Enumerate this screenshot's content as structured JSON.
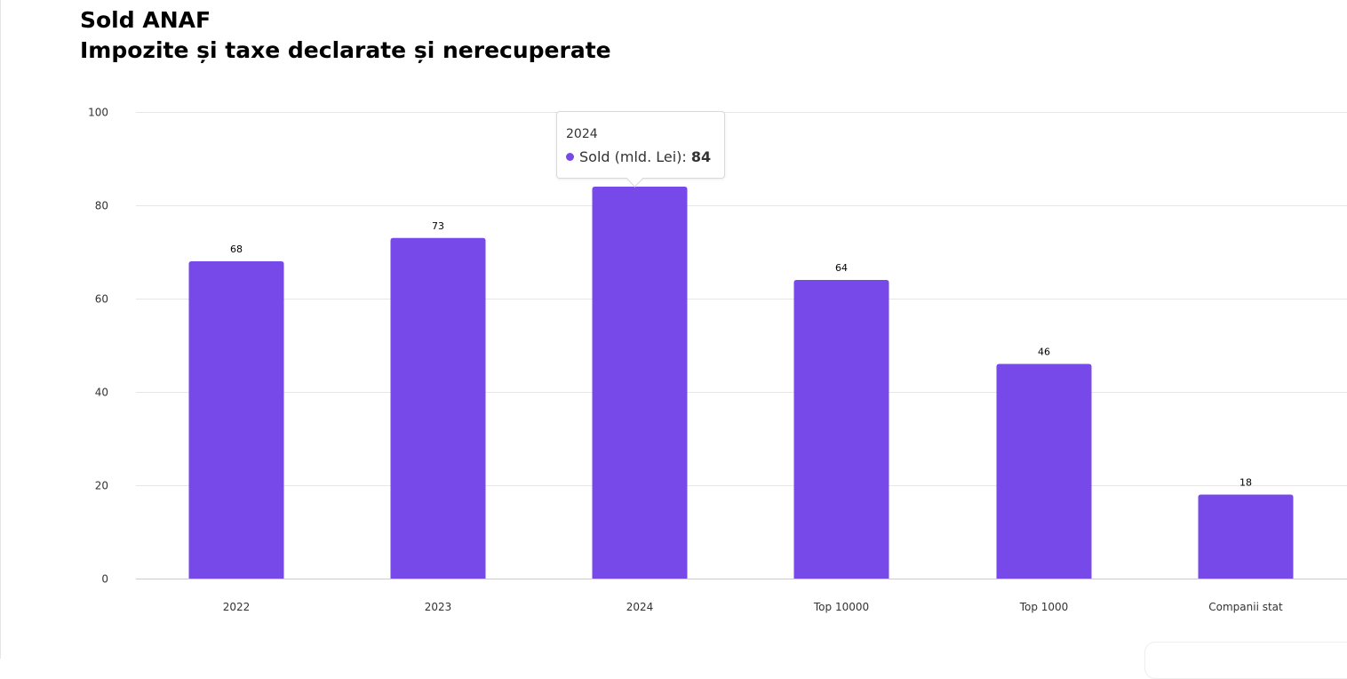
{
  "title": {
    "line1": "Sold ANAF",
    "line2": "Impozite și taxe declarate și nerecuperate"
  },
  "colors": {
    "bar": "#7749E8",
    "grid": "#e6e6e6",
    "axis": "#cccccc"
  },
  "chart_data": {
    "type": "bar",
    "title": "Sold ANAF",
    "subtitle": "Impozite și taxe declarate și nerecuperate",
    "categories": [
      "2022",
      "2023",
      "2024",
      "Top 10000",
      "Top 1000",
      "Companii stat"
    ],
    "series": [
      {
        "name": "Sold (mld. Lei)",
        "values": [
          68,
          73,
          84,
          64,
          46,
          18
        ]
      }
    ],
    "ylim": [
      0,
      100
    ],
    "yticks": [
      0,
      20,
      40,
      60,
      80,
      100
    ],
    "xlabel": "",
    "ylabel": "",
    "grid": true,
    "data_labels": true
  },
  "tooltip": {
    "header": "2024",
    "series_name": "Sold (mld. Lei)",
    "separator": ":",
    "value": "84"
  }
}
